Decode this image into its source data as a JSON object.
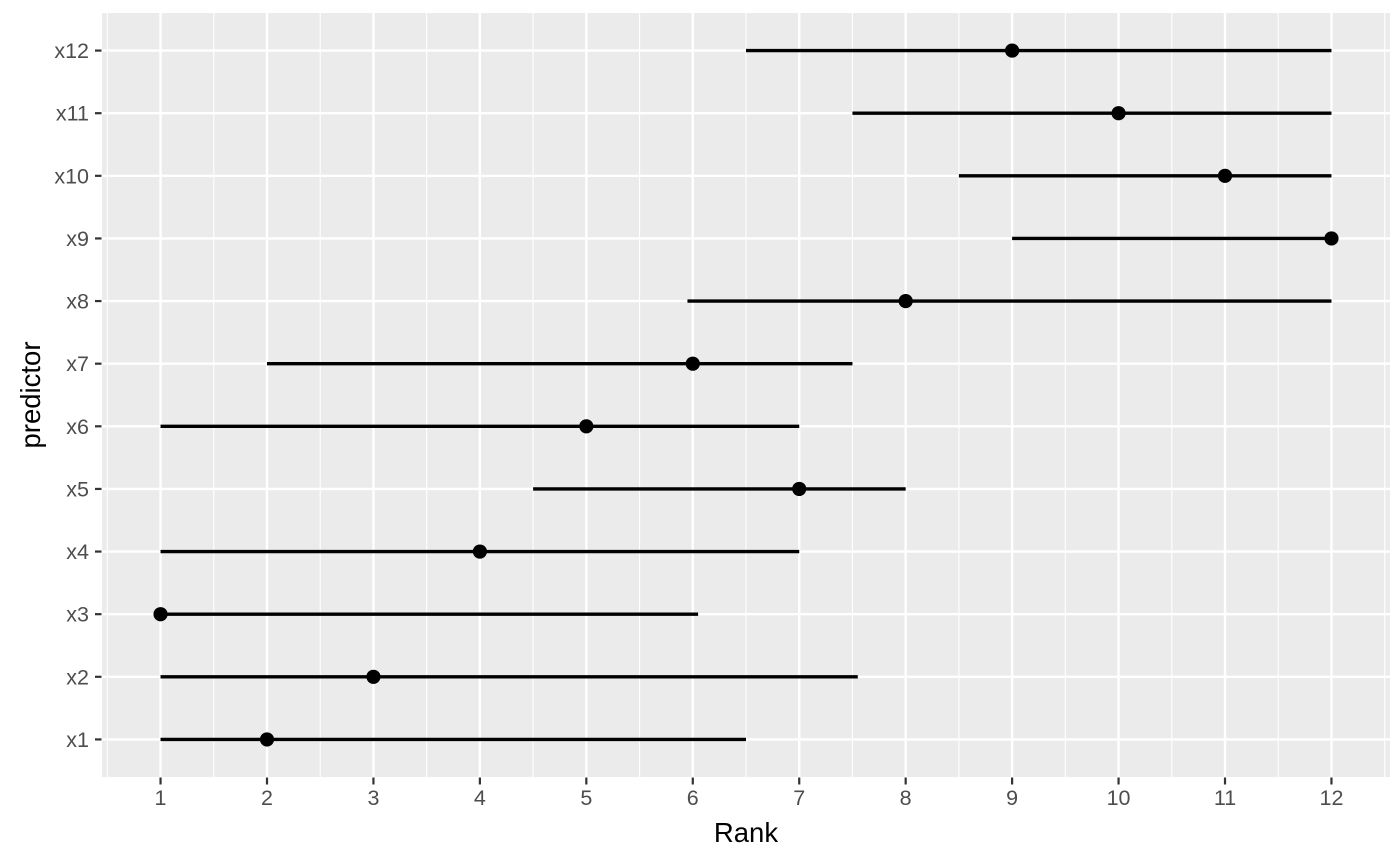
{
  "chart_data": {
    "type": "scatter",
    "subtype": "point-with-horizontal-interval",
    "title": "",
    "xlabel": "Rank",
    "ylabel": "predictor",
    "x_ticks": [
      1,
      2,
      3,
      4,
      5,
      6,
      7,
      8,
      9,
      10,
      11,
      12
    ],
    "x_minor_tick_step": 0.5,
    "xlim": [
      0.45,
      12.55
    ],
    "y_categories_top_to_bottom": [
      "x12",
      "x11",
      "x10",
      "x9",
      "x8",
      "x7",
      "x6",
      "x5",
      "x4",
      "x3",
      "x2",
      "x1"
    ],
    "grid": {
      "major": true,
      "minor_x": true,
      "minor_y": false
    },
    "legend_position": "none",
    "points": [
      {
        "predictor": "x1",
        "estimate": 2,
        "lower": 1,
        "upper": 6.5
      },
      {
        "predictor": "x2",
        "estimate": 3,
        "lower": 1,
        "upper": 7.55
      },
      {
        "predictor": "x3",
        "estimate": 1,
        "lower": 1,
        "upper": 6.05
      },
      {
        "predictor": "x4",
        "estimate": 4,
        "lower": 1,
        "upper": 7
      },
      {
        "predictor": "x5",
        "estimate": 7,
        "lower": 4.5,
        "upper": 8
      },
      {
        "predictor": "x6",
        "estimate": 5,
        "lower": 1,
        "upper": 7
      },
      {
        "predictor": "x7",
        "estimate": 6,
        "lower": 2,
        "upper": 7.5
      },
      {
        "predictor": "x8",
        "estimate": 8,
        "lower": 5.95,
        "upper": 12
      },
      {
        "predictor": "x9",
        "estimate": 12,
        "lower": 9,
        "upper": 12
      },
      {
        "predictor": "x10",
        "estimate": 11,
        "lower": 8.5,
        "upper": 12
      },
      {
        "predictor": "x11",
        "estimate": 10,
        "lower": 7.5,
        "upper": 12
      },
      {
        "predictor": "x12",
        "estimate": 9,
        "lower": 6.5,
        "upper": 12
      }
    ]
  },
  "style": {
    "background": "#FFFFFF",
    "panel_bg": "#EBEBEB",
    "grid_color": "#FFFFFF",
    "data_color": "#000000",
    "tick_mark_color": "#333333",
    "tick_label_color": "#4D4D4D",
    "axis_title_color": "#000000"
  }
}
